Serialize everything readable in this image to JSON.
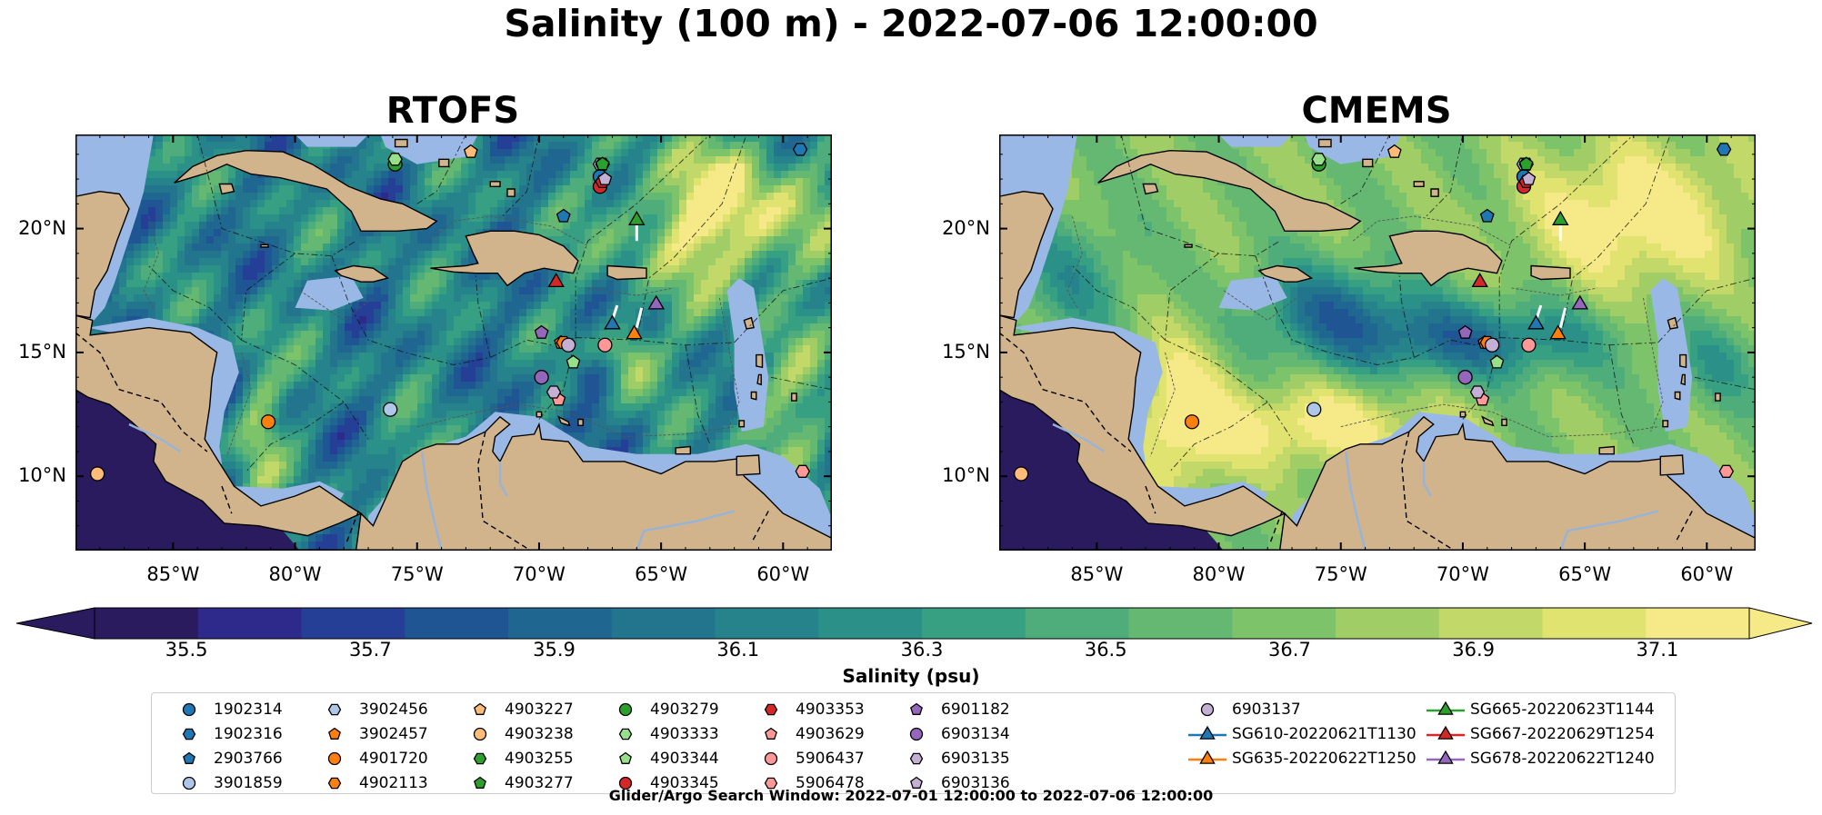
{
  "suptitle": "Salinity (100 m) - 2022-07-06 12:00:00",
  "panels": [
    {
      "title": "RTOFS",
      "variant": "rtofs"
    },
    {
      "title": "CMEMS",
      "variant": "cmems"
    }
  ],
  "axes": {
    "lon_labels": [
      "85°W",
      "80°W",
      "75°W",
      "70°W",
      "65°W",
      "60°W"
    ],
    "lon_values": [
      -85,
      -80,
      -75,
      -70,
      -65,
      -60
    ],
    "lat_labels": [
      "20°N",
      "15°N",
      "10°N"
    ],
    "lat_values": [
      20,
      15,
      10
    ],
    "extent": {
      "lon_min": -89,
      "lon_max": -58,
      "lat_min": 7,
      "lat_max": 23.8
    }
  },
  "colorbar": {
    "label": "Salinity (psu)",
    "min": 35.4,
    "max": 37.2,
    "step": 0.1,
    "tick_labels": [
      "35.5",
      "35.7",
      "35.9",
      "36.1",
      "36.3",
      "36.5",
      "36.7",
      "36.9",
      "37.1"
    ],
    "tick_values": [
      35.5,
      35.7,
      35.9,
      36.1,
      36.3,
      36.5,
      36.7,
      36.9,
      37.1
    ],
    "extend": "both",
    "colors": [
      "#2a1a5e",
      "#2d2a8c",
      "#253f96",
      "#1e5592",
      "#1f6690",
      "#22758d",
      "#26838b",
      "#2b9188",
      "#37a083",
      "#4ead7b",
      "#65b872",
      "#7dc36a",
      "#a0cd66",
      "#c2d869",
      "#e0e36f",
      "#f6ea88"
    ]
  },
  "map_colors": {
    "land": "#d2b48c",
    "shelf": "#9ab8e6",
    "deep": "#2a1a5e"
  },
  "legend": {
    "items": [
      {
        "label": "1902314",
        "marker": "circle",
        "color": "#1f77b4"
      },
      {
        "label": "1902316",
        "marker": "hexagon",
        "color": "#1f77b4"
      },
      {
        "label": "2903766",
        "marker": "pentagon",
        "color": "#1f77b4"
      },
      {
        "label": "3901859",
        "marker": "circle",
        "color": "#aec7e8"
      },
      {
        "label": "3902456",
        "marker": "hexagon",
        "color": "#aec7e8"
      },
      {
        "label": "3902457",
        "marker": "pentagon",
        "color": "#ff7f0e"
      },
      {
        "label": "4901720",
        "marker": "circle",
        "color": "#ff7f0e"
      },
      {
        "label": "4902113",
        "marker": "hexagon",
        "color": "#ff7f0e"
      },
      {
        "label": "4903227",
        "marker": "pentagon",
        "color": "#ffbb78"
      },
      {
        "label": "4903238",
        "marker": "circle",
        "color": "#ffbb78"
      },
      {
        "label": "4903255",
        "marker": "hexagon",
        "color": "#2ca02c"
      },
      {
        "label": "4903277",
        "marker": "pentagon",
        "color": "#2ca02c"
      },
      {
        "label": "4903279",
        "marker": "circle",
        "color": "#2ca02c"
      },
      {
        "label": "4903333",
        "marker": "hexagon",
        "color": "#98df8a"
      },
      {
        "label": "4903344",
        "marker": "pentagon",
        "color": "#98df8a"
      },
      {
        "label": "4903345",
        "marker": "circle",
        "color": "#d62728"
      },
      {
        "label": "4903353",
        "marker": "hexagon",
        "color": "#d62728"
      },
      {
        "label": "4903629",
        "marker": "pentagon",
        "color": "#ff9896"
      },
      {
        "label": "5906437",
        "marker": "circle",
        "color": "#ff9896"
      },
      {
        "label": "5906478",
        "marker": "hexagon",
        "color": "#ff9896"
      },
      {
        "label": "6901182",
        "marker": "pentagon",
        "color": "#9467bd"
      },
      {
        "label": "6903134",
        "marker": "circle",
        "color": "#9467bd"
      },
      {
        "label": "6903135",
        "marker": "hexagon",
        "color": "#c5b0d5"
      },
      {
        "label": "6903136",
        "marker": "pentagon",
        "color": "#c5b0d5"
      },
      {
        "label": "6903137",
        "marker": "circle",
        "color": "#c5b0d5"
      },
      {
        "label": "SG610-20220621T1130",
        "marker": "triangle",
        "color": "#1f77b4"
      },
      {
        "label": "SG635-20220622T1250",
        "marker": "triangle",
        "color": "#ff7f0e"
      },
      {
        "label": "SG665-20220623T1144",
        "marker": "triangle",
        "color": "#2ca02c"
      },
      {
        "label": "SG667-20220629T1254",
        "marker": "triangle",
        "color": "#d62728"
      },
      {
        "label": "SG678-20220622T1240",
        "marker": "triangle",
        "color": "#9467bd"
      }
    ]
  },
  "stations": [
    {
      "id": "1902314",
      "lon": -67.5,
      "lat": 22.1
    },
    {
      "id": "1902316",
      "lon": -59.3,
      "lat": 23.2
    },
    {
      "id": "2903766",
      "lon": -69.0,
      "lat": 20.5
    },
    {
      "id": "3901859",
      "lon": -76.1,
      "lat": 12.7
    },
    {
      "id": "3902456",
      "lon": -67.5,
      "lat": 22.6
    },
    {
      "id": "3902457",
      "lon": -69.1,
      "lat": 15.4
    },
    {
      "id": "4901720",
      "lon": -81.1,
      "lat": 12.2
    },
    {
      "id": "4902113",
      "lon": -69.0,
      "lat": 15.4
    },
    {
      "id": "4903227",
      "lon": -72.8,
      "lat": 23.1
    },
    {
      "id": "4903238",
      "lon": -88.1,
      "lat": 10.1
    },
    {
      "id": "4903255",
      "lon": -67.4,
      "lat": 22.6
    },
    {
      "id": "4903277",
      "lon": -67.4,
      "lat": 22.6
    },
    {
      "id": "4903279",
      "lon": -75.9,
      "lat": 22.6
    },
    {
      "id": "4903333",
      "lon": -75.9,
      "lat": 22.8
    },
    {
      "id": "4903344",
      "lon": -68.6,
      "lat": 14.6
    },
    {
      "id": "4903345",
      "lon": -67.5,
      "lat": 21.7
    },
    {
      "id": "4903353",
      "lon": -67.4,
      "lat": 21.9
    },
    {
      "id": "4903629",
      "lon": -69.2,
      "lat": 13.1
    },
    {
      "id": "5906437",
      "lon": -67.3,
      "lat": 15.3
    },
    {
      "id": "5906478",
      "lon": -59.2,
      "lat": 10.2
    },
    {
      "id": "6901182",
      "lon": -69.9,
      "lat": 15.8
    },
    {
      "id": "6903134",
      "lon": -69.9,
      "lat": 14.0
    },
    {
      "id": "6903135",
      "lon": -69.4,
      "lat": 13.4
    },
    {
      "id": "6903136",
      "lon": -67.3,
      "lat": 22.0
    },
    {
      "id": "6903137",
      "lon": -68.8,
      "lat": 15.3
    },
    {
      "id": "SG610-20220621T1130",
      "lon": -67.0,
      "lat": 16.2
    },
    {
      "id": "SG635-20220622T1250",
      "lon": -66.1,
      "lat": 15.8
    },
    {
      "id": "SG665-20220623T1144",
      "lon": -66.0,
      "lat": 20.4
    },
    {
      "id": "SG667-20220629T1254",
      "lon": -69.3,
      "lat": 17.9
    },
    {
      "id": "SG678-20220622T1240",
      "lon": -65.2,
      "lat": 17.0
    }
  ],
  "footer": "Glider/Argo Search Window: 2022-07-01 12:00:00 to 2022-07-06 12:00:00"
}
